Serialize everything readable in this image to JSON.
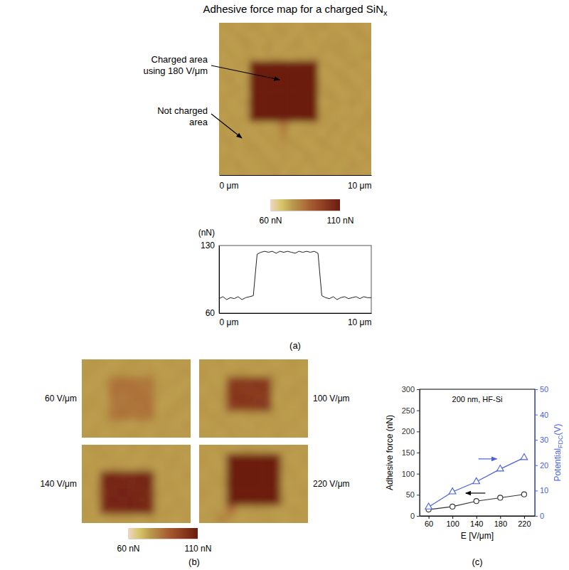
{
  "chart_data": [
    {
      "type": "heatmap",
      "title": "Adhesive force map for a charged SiN",
      "title_subscript": "x",
      "annotations": [
        "Charged area using 180 V/μm",
        "Not charged area"
      ],
      "xlim": [
        0,
        10
      ],
      "ylim": [
        0,
        10
      ],
      "xticks": [
        {
          "value": 0,
          "label": "0 μm"
        },
        {
          "value": 10,
          "label": "10 μm"
        }
      ],
      "tick_labels": "x",
      "cells": [
        [
          76,
          77,
          75,
          76,
          78,
          76,
          75,
          77,
          76,
          76,
          75,
          77,
          76,
          78,
          76,
          75,
          76,
          77,
          76,
          75
        ],
        [
          75,
          76,
          77,
          76,
          75,
          77,
          76,
          76,
          78,
          75,
          76,
          76,
          77,
          75,
          76,
          77,
          75,
          76,
          78,
          76
        ],
        [
          77,
          75,
          76,
          78,
          76,
          75,
          77,
          76,
          75,
          76,
          78,
          75,
          76,
          76,
          77,
          76,
          78,
          75,
          76,
          77
        ],
        [
          76,
          76,
          75,
          77,
          76,
          76,
          78,
          75,
          76,
          77,
          76,
          76,
          75,
          77,
          76,
          78,
          76,
          76,
          75,
          76
        ],
        [
          75,
          77,
          76,
          76,
          77,
          75,
          76,
          77,
          76,
          75,
          77,
          76,
          78,
          76,
          75,
          76,
          77,
          76,
          76,
          78
        ],
        [
          76,
          75,
          77,
          76,
          122,
          123,
          121,
          124,
          122,
          123,
          122,
          121,
          123,
          76,
          77,
          75,
          76,
          78,
          76,
          75
        ],
        [
          77,
          76,
          76,
          75,
          123,
          122,
          124,
          123,
          121,
          122,
          124,
          123,
          122,
          75,
          76,
          77,
          76,
          75,
          77,
          76
        ],
        [
          76,
          78,
          75,
          76,
          121,
          124,
          122,
          123,
          124,
          121,
          123,
          122,
          124,
          76,
          75,
          76,
          78,
          76,
          75,
          77
        ],
        [
          75,
          76,
          77,
          76,
          124,
          122,
          123,
          121,
          122,
          124,
          122,
          123,
          121,
          77,
          76,
          75,
          76,
          77,
          76,
          76
        ],
        [
          76,
          77,
          76,
          75,
          122,
          123,
          121,
          124,
          123,
          122,
          121,
          124,
          123,
          76,
          78,
          76,
          75,
          76,
          77,
          75
        ],
        [
          77,
          75,
          76,
          78,
          123,
          121,
          124,
          122,
          121,
          123,
          124,
          122,
          122,
          75,
          76,
          77,
          76,
          78,
          76,
          76
        ],
        [
          76,
          76,
          75,
          76,
          122,
          124,
          122,
          123,
          124,
          122,
          123,
          121,
          123,
          76,
          77,
          76,
          75,
          76,
          75,
          77
        ],
        [
          75,
          77,
          76,
          77,
          121,
          122,
          123,
          122,
          123,
          121,
          122,
          124,
          122,
          77,
          76,
          75,
          77,
          76,
          76,
          78
        ],
        [
          76,
          76,
          77,
          75,
          76,
          76,
          75,
          77,
          84,
          76,
          75,
          76,
          77,
          76,
          76,
          78,
          75,
          76,
          77,
          76
        ],
        [
          77,
          75,
          76,
          76,
          75,
          77,
          76,
          76,
          81,
          75,
          76,
          77,
          76,
          75,
          77,
          76,
          76,
          77,
          75,
          76
        ],
        [
          76,
          78,
          75,
          77,
          76,
          75,
          77,
          76,
          79,
          77,
          76,
          75,
          76,
          78,
          76,
          75,
          77,
          76,
          76,
          75
        ],
        [
          75,
          76,
          76,
          76,
          78,
          76,
          75,
          77,
          76,
          76,
          77,
          76,
          75,
          76,
          77,
          76,
          76,
          75,
          78,
          76
        ],
        [
          76,
          77,
          75,
          76,
          76,
          77,
          76,
          75,
          77,
          76,
          75,
          78,
          76,
          76,
          75,
          77,
          76,
          76,
          75,
          77
        ],
        [
          77,
          76,
          78,
          75,
          76,
          76,
          77,
          76,
          76,
          75,
          76,
          76,
          77,
          75,
          76,
          76,
          75,
          78,
          76,
          76
        ],
        [
          76,
          75,
          76,
          77,
          75,
          76,
          76,
          78,
          75,
          77,
          76,
          75,
          76,
          77,
          76,
          75,
          77,
          76,
          76,
          75
        ]
      ],
      "colorbar": {
        "range": [
          60,
          110
        ],
        "ticks": [
          {
            "value": 60,
            "label": "60 nN"
          },
          {
            "value": 110,
            "label": "110 nN"
          }
        ]
      }
    },
    {
      "type": "line",
      "ylabel": "(nN)",
      "color": "#222222",
      "x": [
        0,
        0.25,
        0.5,
        0.75,
        1,
        1.25,
        1.5,
        1.75,
        2,
        2.25,
        2.5,
        2.75,
        3,
        3.25,
        3.5,
        3.75,
        4,
        4.25,
        4.5,
        4.75,
        5,
        5.25,
        5.5,
        5.75,
        6,
        6.25,
        6.5,
        6.75,
        7,
        7.25,
        7.5,
        7.75,
        8,
        8.25,
        8.5,
        8.75,
        9,
        9.25,
        9.5,
        9.75,
        10
      ],
      "values": [
        75,
        77,
        74,
        76,
        75,
        77,
        74,
        76,
        77,
        78,
        121,
        123,
        124,
        123,
        124,
        122,
        124,
        123,
        124,
        123,
        122,
        124,
        123,
        124,
        123,
        124,
        122,
        78,
        76,
        75,
        77,
        74,
        76,
        77,
        75,
        76,
        77,
        75,
        77,
        76,
        76
      ],
      "xlim": [
        0,
        10
      ],
      "ylim": [
        60,
        130
      ],
      "xticks": [
        {
          "value": 0,
          "label": "0 μm"
        },
        {
          "value": 10,
          "label": "10 μm"
        }
      ],
      "yticks": [
        60,
        130
      ],
      "panel_label": "(a)"
    },
    {
      "type": "heatmap",
      "panels": [
        {
          "title": "60 V/μm",
          "cells": [
            [
              76,
              77,
              76,
              75,
              76,
              77,
              76,
              76,
              75,
              77,
              76,
              76
            ],
            [
              77,
              76,
              75,
              76,
              77,
              76,
              76,
              77,
              76,
              75,
              76,
              77
            ],
            [
              76,
              75,
              77,
              84,
              85,
              84,
              83,
              84,
              76,
              76,
              77,
              75
            ],
            [
              75,
              76,
              76,
              85,
              84,
              85,
              84,
              83,
              77,
              76,
              75,
              76
            ],
            [
              76,
              77,
              75,
              84,
              83,
              84,
              85,
              84,
              76,
              75,
              76,
              77
            ],
            [
              77,
              76,
              76,
              83,
              84,
              84,
              84,
              85,
              75,
              76,
              77,
              76
            ],
            [
              76,
              75,
              77,
              84,
              85,
              83,
              84,
              84,
              76,
              77,
              76,
              75
            ],
            [
              75,
              76,
              76,
              77,
              76,
              75,
              77,
              76,
              76,
              76,
              75,
              77
            ],
            [
              76,
              77,
              75,
              76,
              76,
              77,
              76,
              75,
              77,
              76,
              76,
              76
            ]
          ]
        },
        {
          "title": "100 V/μm",
          "cells": [
            [
              76,
              76,
              77,
              75,
              76,
              76,
              77,
              76,
              75,
              76,
              77,
              76
            ],
            [
              77,
              75,
              76,
              76,
              77,
              76,
              75,
              76,
              77,
              76,
              76,
              75
            ],
            [
              76,
              76,
              75,
              99,
              101,
              100,
              102,
              100,
              77,
              75,
              76,
              77
            ],
            [
              75,
              77,
              76,
              101,
              100,
              99,
              100,
              101,
              76,
              76,
              77,
              76
            ],
            [
              76,
              76,
              77,
              100,
              102,
              101,
              99,
              100,
              75,
              77,
              76,
              76
            ],
            [
              77,
              75,
              76,
              99,
              100,
              100,
              101,
              102,
              76,
              76,
              75,
              77
            ],
            [
              76,
              77,
              76,
              76,
              75,
              77,
              76,
              76,
              77,
              75,
              76,
              76
            ],
            [
              75,
              76,
              77,
              76,
              76,
              75,
              77,
              76,
              76,
              76,
              77,
              75
            ],
            [
              76,
              76,
              75,
              77,
              76,
              76,
              76,
              75,
              77,
              76,
              75,
              76
            ]
          ]
        },
        {
          "title": "140 V/μm",
          "cells": [
            [
              76,
              77,
              76,
              76,
              75,
              77,
              76,
              76,
              77,
              75,
              76,
              76
            ],
            [
              75,
              76,
              77,
              76,
              76,
              76,
              75,
              77,
              76,
              76,
              77,
              75
            ],
            [
              76,
              76,
              75,
              77,
              76,
              75,
              77,
              76,
              75,
              77,
              76,
              76
            ],
            [
              77,
              75,
              106,
              107,
              105,
              106,
              107,
              106,
              76,
              76,
              75,
              77
            ],
            [
              76,
              76,
              107,
              106,
              106,
              105,
              106,
              107,
              75,
              77,
              76,
              76
            ],
            [
              75,
              77,
              105,
              106,
              107,
              106,
              106,
              105,
              77,
              76,
              76,
              75
            ],
            [
              76,
              76,
              106,
              107,
              106,
              107,
              105,
              106,
              76,
              75,
              77,
              76
            ],
            [
              77,
              75,
              106,
              105,
              106,
              106,
              107,
              106,
              76,
              77,
              76,
              76
            ],
            [
              76,
              76,
              75,
              77,
              76,
              76,
              75,
              77,
              76,
              76,
              75,
              77
            ]
          ]
        },
        {
          "title": "220 V/μm",
          "cells": [
            [
              76,
              76,
              77,
              75,
              76,
              77,
              76,
              76,
              75,
              77,
              76,
              76
            ],
            [
              77,
              75,
              76,
              117,
              118,
              119,
              118,
              117,
              118,
              76,
              75,
              77
            ],
            [
              76,
              76,
              75,
              118,
              119,
              118,
              117,
              119,
              118,
              77,
              76,
              76
            ],
            [
              75,
              77,
              76,
              119,
              117,
              118,
              119,
              118,
              117,
              76,
              77,
              75
            ],
            [
              76,
              76,
              77,
              118,
              118,
              117,
              118,
              119,
              118,
              75,
              76,
              76
            ],
            [
              77,
              76,
              75,
              117,
              119,
              118,
              118,
              117,
              119,
              76,
              76,
              77
            ],
            [
              76,
              75,
              76,
              118,
              118,
              119,
              117,
              118,
              118,
              77,
              75,
              76
            ],
            [
              75,
              77,
              76,
              86,
              76,
              76,
              77,
              76,
              75,
              76,
              77,
              76
            ],
            [
              76,
              76,
              82,
              77,
              75,
              76,
              76,
              77,
              76,
              75,
              76,
              76
            ]
          ]
        }
      ],
      "colorbar": {
        "range": [
          60,
          110
        ],
        "ticks": [
          {
            "value": 60,
            "label": "60 nN"
          },
          {
            "value": 110,
            "label": "110 nN"
          }
        ]
      },
      "panel_label": "(b)"
    },
    {
      "type": "line",
      "annotation": "200 nm, HF-Si",
      "x": [
        60,
        100,
        140,
        180,
        220
      ],
      "xlabel": "E [V/μm]",
      "ylabel": "Adhesive force (nN)",
      "y2label": "Potential",
      "y2label_subscript": "FDC",
      "y2label_suffix": "(V)",
      "xlim": [
        45,
        238
      ],
      "xticks": [
        60,
        100,
        140,
        180,
        220
      ],
      "ylim": [
        0,
        300
      ],
      "yticks": [
        0,
        50,
        100,
        150,
        200,
        250,
        300
      ],
      "y2lim": [
        0,
        50
      ],
      "y2ticks": [
        0,
        10,
        20,
        30,
        40,
        50
      ],
      "series": [
        {
          "values": [
            15,
            22,
            35,
            43,
            51
          ],
          "color": "#333333",
          "marker": "circle"
        },
        {
          "values": [
            3.5,
            9.5,
            13.5,
            18.5,
            23
          ],
          "color": "#4a5fe0",
          "marker": "triangle",
          "axis": "y2"
        }
      ],
      "panel_label": "(c)"
    }
  ]
}
